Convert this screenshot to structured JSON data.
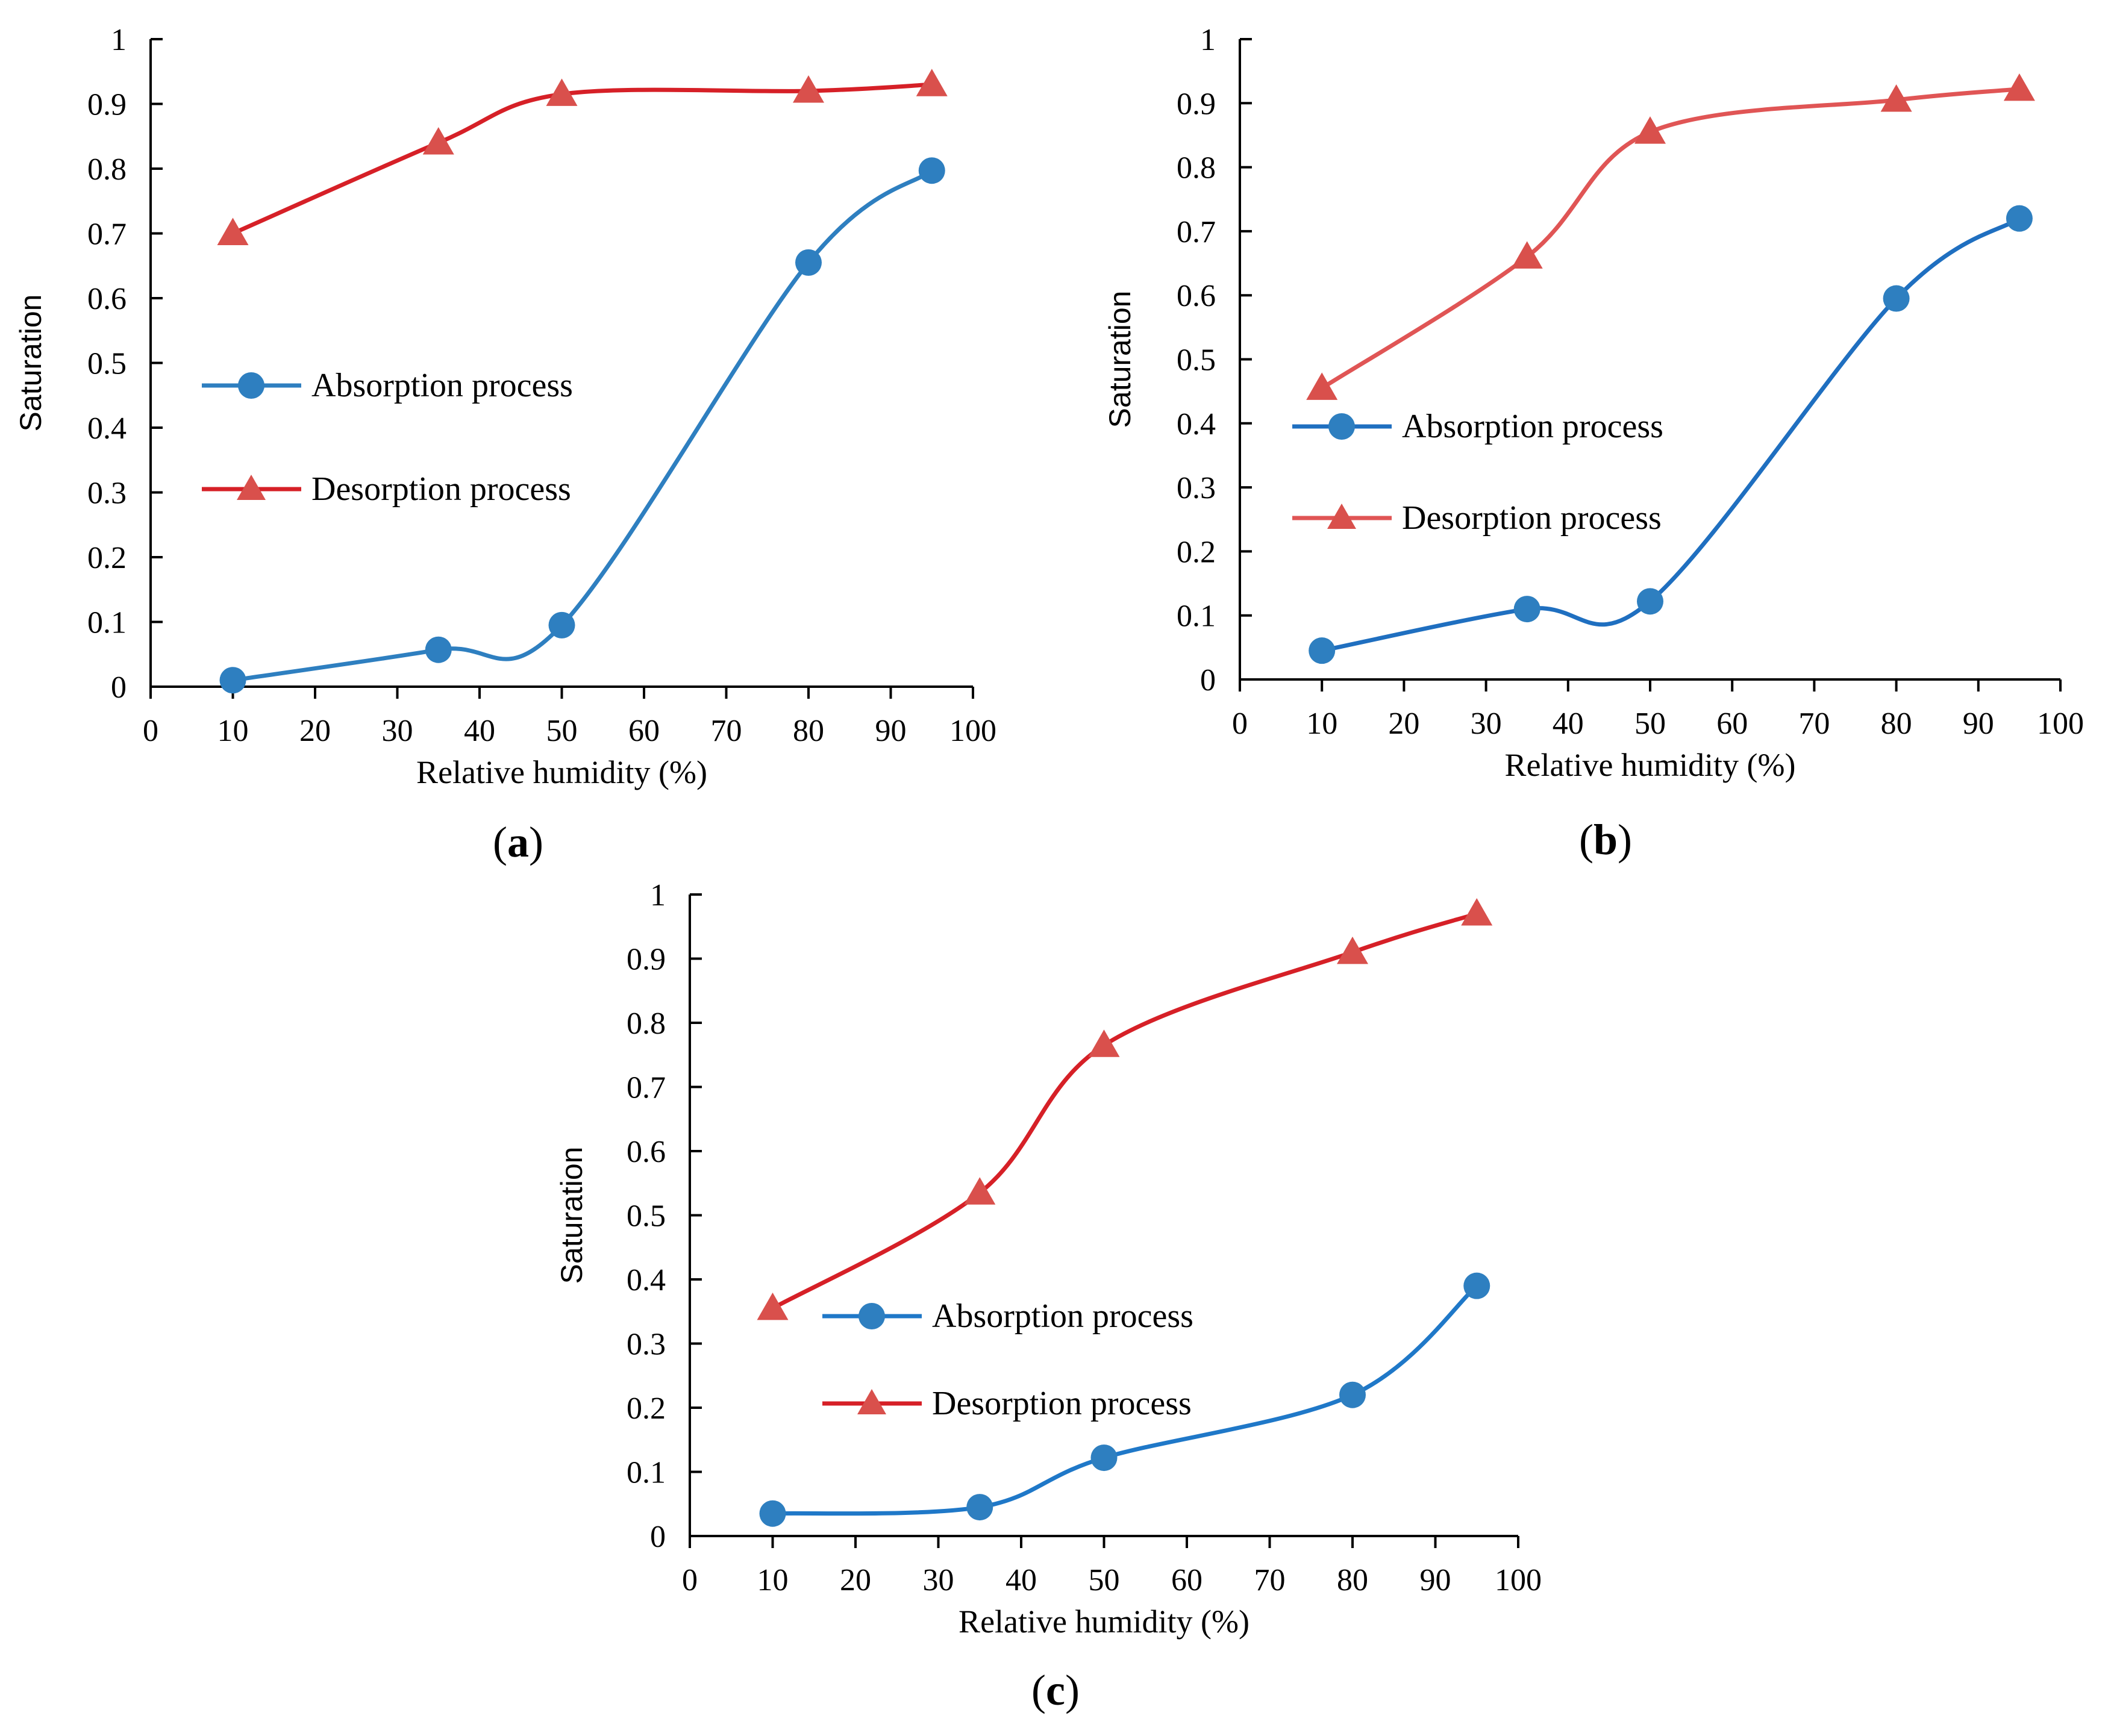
{
  "chart_data": [
    {
      "type": "line",
      "panel": "a",
      "xlabel": "Relative humidity (%)",
      "ylabel": "Saturation",
      "xlim": [
        0,
        100
      ],
      "ylim": [
        0,
        1
      ],
      "xticks": [
        "0",
        "10",
        "20",
        "30",
        "40",
        "50",
        "60",
        "70",
        "80",
        "90",
        "100"
      ],
      "yticks": [
        "0",
        "0.1",
        "0.2",
        "0.3",
        "0.4",
        "0.5",
        "0.6",
        "0.7",
        "0.8",
        "0.9",
        "1"
      ],
      "x": [
        10,
        35,
        50,
        80,
        95
      ],
      "series": [
        {
          "name": "Absorption process",
          "values": [
            0.01,
            0.057,
            0.095,
            0.655,
            0.797
          ],
          "color": "#2E7FC0",
          "marker": "circle"
        },
        {
          "name": "Desorption process",
          "values": [
            0.7,
            0.84,
            0.915,
            0.92,
            0.93
          ],
          "color": "#D62027",
          "marker": "triangle"
        }
      ]
    },
    {
      "type": "line",
      "panel": "b",
      "xlabel": "Relative humidity (%)",
      "ylabel": "Saturation",
      "xlim": [
        0,
        100
      ],
      "ylim": [
        0,
        1
      ],
      "xticks": [
        "0",
        "10",
        "20",
        "30",
        "40",
        "50",
        "60",
        "70",
        "80",
        "90",
        "100"
      ],
      "yticks": [
        "0",
        "0.1",
        "0.2",
        "0.3",
        "0.4",
        "0.5",
        "0.6",
        "0.7",
        "0.8",
        "0.9",
        "1"
      ],
      "x": [
        10,
        35,
        50,
        80,
        95
      ],
      "series": [
        {
          "name": "Absorption process",
          "values": [
            0.045,
            0.11,
            0.122,
            0.595,
            0.72
          ],
          "color": "#1F6FC0",
          "marker": "circle"
        },
        {
          "name": "Desorption process",
          "values": [
            0.455,
            0.66,
            0.855,
            0.905,
            0.922
          ],
          "color": "#E05555",
          "marker": "triangle"
        }
      ]
    },
    {
      "type": "line",
      "panel": "c",
      "xlabel": "Relative humidity (%)",
      "ylabel": "Saturation",
      "xlim": [
        0,
        100
      ],
      "ylim": [
        0,
        1
      ],
      "xticks": [
        "0",
        "10",
        "20",
        "30",
        "40",
        "50",
        "60",
        "70",
        "80",
        "90",
        "100"
      ],
      "yticks": [
        "0",
        "0.1",
        "0.2",
        "0.3",
        "0.4",
        "0.5",
        "0.6",
        "0.7",
        "0.8",
        "0.9",
        "1"
      ],
      "x": [
        10,
        35,
        50,
        80,
        95
      ],
      "series": [
        {
          "name": "Absorption process",
          "values": [
            0.035,
            0.045,
            0.122,
            0.22,
            0.39
          ],
          "color": "#1F78C8",
          "marker": "circle"
        },
        {
          "name": "Desorption process",
          "values": [
            0.355,
            0.535,
            0.765,
            0.91,
            0.97
          ],
          "color": "#D62027",
          "marker": "triangle"
        }
      ]
    }
  ],
  "colors": {
    "axis": "#000000",
    "circle_fill": "#2E7FC0",
    "triangle_fill": "#D9504C"
  }
}
